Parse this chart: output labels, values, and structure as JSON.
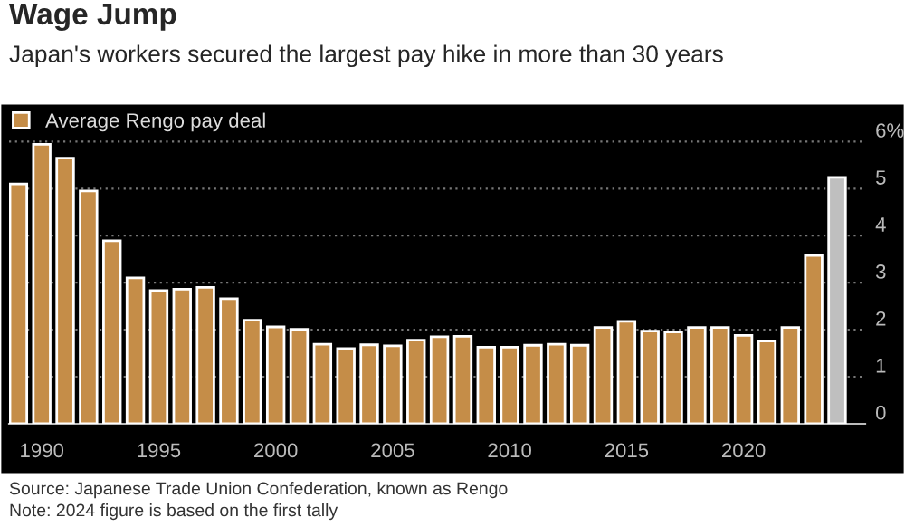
{
  "chart_data": {
    "type": "bar",
    "title": "Wage Jump",
    "subtitle": "Japan's workers secured the largest pay hike in more than 30 years",
    "x": [
      1989,
      1990,
      1991,
      1992,
      1993,
      1994,
      1995,
      1996,
      1997,
      1998,
      1999,
      2000,
      2001,
      2002,
      2003,
      2004,
      2005,
      2006,
      2007,
      2008,
      2009,
      2010,
      2011,
      2012,
      2013,
      2014,
      2015,
      2016,
      2017,
      2018,
      2019,
      2020,
      2021,
      2022,
      2023,
      2024
    ],
    "series": [
      {
        "name": "Average Rengo pay deal",
        "color": "#c58d48",
        "values": [
          5.1,
          5.94,
          5.65,
          4.95,
          3.89,
          3.1,
          2.83,
          2.86,
          2.9,
          2.66,
          2.2,
          2.06,
          2.01,
          1.69,
          1.6,
          1.68,
          1.66,
          1.78,
          1.85,
          1.86,
          1.63,
          1.63,
          1.67,
          1.69,
          1.67,
          2.05,
          2.18,
          1.97,
          1.95,
          2.05,
          2.05,
          1.88,
          1.76,
          2.05,
          3.58,
          5.24
        ],
        "colors": [
          "#c58d48",
          "#c58d48",
          "#c58d48",
          "#c58d48",
          "#c58d48",
          "#c58d48",
          "#c58d48",
          "#c58d48",
          "#c58d48",
          "#c58d48",
          "#c58d48",
          "#c58d48",
          "#c58d48",
          "#c58d48",
          "#c58d48",
          "#c58d48",
          "#c58d48",
          "#c58d48",
          "#c58d48",
          "#c58d48",
          "#c58d48",
          "#c58d48",
          "#c58d48",
          "#c58d48",
          "#c58d48",
          "#c58d48",
          "#c58d48",
          "#c58d48",
          "#c58d48",
          "#c58d48",
          "#c58d48",
          "#c58d48",
          "#c58d48",
          "#c58d48",
          "#c58d48",
          "#bfbfbf"
        ]
      }
    ],
    "xlim": [
      1988.6,
      2025.2
    ],
    "xticks": [
      1990,
      1995,
      2000,
      2005,
      2010,
      2015,
      2020
    ],
    "ylim": [
      0,
      6.7
    ],
    "yticks": [
      0,
      1,
      2,
      3,
      4,
      5,
      {
        "value": 6,
        "label": "6%"
      }
    ],
    "grid": "y",
    "legend": "top left",
    "annotations": [
      "Source: Japanese Trade Union Confederation, known as Rengo",
      "Note: 2024 figure is based on the first tally"
    ]
  }
}
